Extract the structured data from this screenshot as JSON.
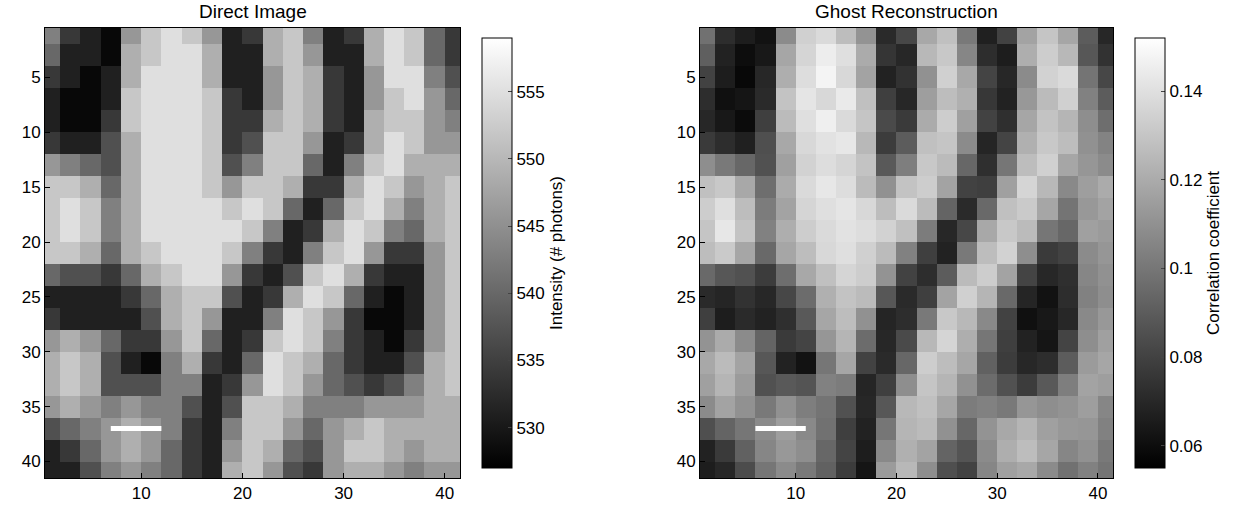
{
  "chart_data": [
    {
      "type": "heatmap",
      "title": "Direct Image",
      "x": [
        1,
        3,
        5,
        7,
        9,
        11,
        13,
        15,
        17,
        19,
        21,
        23,
        25,
        27,
        29,
        31,
        33,
        35,
        37,
        39,
        41
      ],
      "y": [
        1,
        3,
        5,
        7,
        9,
        11,
        13,
        15,
        17,
        19,
        21,
        23,
        25,
        27,
        29,
        31,
        33,
        35,
        37,
        39,
        41
      ],
      "xlim": [
        0.5,
        41.5
      ],
      "ylim": [
        41.5,
        0.5
      ],
      "xticks": [
        10,
        20,
        30,
        40
      ],
      "yticks": [
        5,
        10,
        15,
        20,
        25,
        30,
        35,
        40
      ],
      "cells": [
        [
          543,
          534,
          531,
          528,
          546,
          552,
          555,
          552,
          546,
          531,
          534,
          549,
          552,
          543,
          531,
          534,
          549,
          555,
          552,
          540,
          534
        ],
        [
          540,
          531,
          531,
          528,
          549,
          552,
          555,
          555,
          549,
          531,
          531,
          549,
          552,
          546,
          531,
          531,
          549,
          555,
          552,
          540,
          534
        ],
        [
          534,
          531,
          528,
          531,
          549,
          555,
          555,
          555,
          549,
          531,
          531,
          546,
          552,
          549,
          534,
          531,
          546,
          555,
          555,
          543,
          537
        ],
        [
          531,
          528,
          528,
          531,
          552,
          555,
          555,
          555,
          552,
          534,
          531,
          546,
          552,
          549,
          534,
          531,
          546,
          552,
          555,
          546,
          540
        ],
        [
          531,
          528,
          528,
          534,
          552,
          555,
          555,
          555,
          552,
          534,
          534,
          549,
          552,
          549,
          534,
          531,
          549,
          552,
          552,
          546,
          543
        ],
        [
          534,
          531,
          531,
          537,
          549,
          555,
          555,
          555,
          552,
          534,
          537,
          552,
          552,
          546,
          531,
          534,
          549,
          555,
          552,
          546,
          546
        ],
        [
          546,
          543,
          540,
          537,
          549,
          555,
          555,
          555,
          552,
          537,
          543,
          552,
          552,
          540,
          531,
          543,
          552,
          555,
          549,
          549,
          549
        ],
        [
          552,
          552,
          549,
          540,
          549,
          555,
          555,
          555,
          552,
          546,
          552,
          552,
          549,
          534,
          534,
          549,
          555,
          552,
          546,
          549,
          552
        ],
        [
          552,
          555,
          552,
          543,
          549,
          555,
          555,
          555,
          555,
          552,
          555,
          552,
          540,
          531,
          540,
          552,
          555,
          549,
          543,
          549,
          552
        ],
        [
          552,
          555,
          552,
          543,
          549,
          555,
          555,
          555,
          555,
          555,
          552,
          543,
          531,
          534,
          549,
          555,
          552,
          543,
          540,
          549,
          552
        ],
        [
          552,
          552,
          549,
          540,
          549,
          552,
          555,
          555,
          555,
          552,
          543,
          534,
          531,
          543,
          552,
          555,
          546,
          534,
          534,
          546,
          552
        ],
        [
          540,
          537,
          537,
          534,
          540,
          549,
          552,
          555,
          555,
          546,
          534,
          531,
          537,
          552,
          555,
          549,
          534,
          531,
          531,
          546,
          552
        ],
        [
          531,
          531,
          531,
          531,
          534,
          540,
          549,
          552,
          552,
          537,
          531,
          534,
          549,
          555,
          552,
          540,
          531,
          528,
          531,
          546,
          552
        ],
        [
          534,
          531,
          531,
          531,
          531,
          537,
          549,
          552,
          546,
          531,
          531,
          543,
          555,
          552,
          546,
          534,
          528,
          528,
          531,
          546,
          552
        ],
        [
          546,
          549,
          546,
          540,
          534,
          534,
          546,
          552,
          540,
          531,
          534,
          552,
          555,
          552,
          543,
          534,
          531,
          528,
          534,
          546,
          552
        ],
        [
          549,
          552,
          549,
          537,
          531,
          528,
          543,
          549,
          534,
          531,
          540,
          555,
          552,
          549,
          540,
          534,
          531,
          531,
          537,
          549,
          552
        ],
        [
          549,
          552,
          549,
          537,
          537,
          537,
          543,
          543,
          531,
          534,
          546,
          555,
          552,
          546,
          540,
          537,
          534,
          537,
          543,
          549,
          552
        ],
        [
          546,
          549,
          546,
          543,
          546,
          543,
          543,
          537,
          531,
          537,
          552,
          552,
          549,
          543,
          543,
          543,
          546,
          546,
          546,
          549,
          549
        ],
        [
          537,
          540,
          543,
          546,
          549,
          546,
          543,
          534,
          531,
          543,
          552,
          552,
          546,
          540,
          546,
          549,
          552,
          549,
          549,
          549,
          549
        ],
        [
          531,
          534,
          540,
          546,
          549,
          546,
          540,
          534,
          531,
          546,
          552,
          549,
          540,
          537,
          546,
          552,
          552,
          549,
          546,
          549,
          549
        ],
        [
          531,
          531,
          537,
          543,
          546,
          543,
          540,
          534,
          531,
          549,
          552,
          546,
          537,
          534,
          546,
          549,
          549,
          546,
          543,
          546,
          546
        ]
      ],
      "colorbar": {
        "title": "Intensity (# photons)",
        "range": [
          527,
          559
        ],
        "ticks": [
          530,
          535,
          540,
          545,
          550,
          555
        ]
      },
      "scale_bar": {
        "x": [
          7,
          12
        ],
        "y": 37
      }
    },
    {
      "type": "heatmap",
      "title": "Ghost Reconstruction",
      "x": [
        1,
        3,
        5,
        7,
        9,
        11,
        13,
        15,
        17,
        19,
        21,
        23,
        25,
        27,
        29,
        31,
        33,
        35,
        37,
        39,
        41
      ],
      "y": [
        1,
        3,
        5,
        7,
        9,
        11,
        13,
        15,
        17,
        19,
        21,
        23,
        25,
        27,
        29,
        31,
        33,
        35,
        37,
        39,
        41
      ],
      "xlim": [
        0.5,
        41.5
      ],
      "ylim": [
        41.5,
        0.5
      ],
      "xticks": [
        10,
        20,
        30,
        40
      ],
      "yticks": [
        5,
        10,
        15,
        20,
        25,
        30,
        35,
        40
      ],
      "cells": [
        [
          0.098,
          0.072,
          0.066,
          0.062,
          0.108,
          0.134,
          0.138,
          0.127,
          0.111,
          0.071,
          0.082,
          0.119,
          0.128,
          0.101,
          0.067,
          0.08,
          0.117,
          0.13,
          0.118,
          0.09,
          0.07
        ],
        [
          0.091,
          0.068,
          0.06,
          0.064,
          0.118,
          0.136,
          0.145,
          0.14,
          0.12,
          0.075,
          0.07,
          0.125,
          0.131,
          0.106,
          0.072,
          0.066,
          0.121,
          0.133,
          0.125,
          0.088,
          0.074
        ],
        [
          0.08,
          0.066,
          0.058,
          0.07,
          0.121,
          0.139,
          0.148,
          0.137,
          0.117,
          0.068,
          0.074,
          0.11,
          0.134,
          0.119,
          0.081,
          0.07,
          0.108,
          0.135,
          0.138,
          0.099,
          0.082
        ],
        [
          0.072,
          0.061,
          0.063,
          0.071,
          0.129,
          0.142,
          0.137,
          0.144,
          0.128,
          0.079,
          0.07,
          0.115,
          0.127,
          0.122,
          0.076,
          0.068,
          0.113,
          0.126,
          0.134,
          0.104,
          0.09
        ],
        [
          0.07,
          0.064,
          0.059,
          0.079,
          0.126,
          0.14,
          0.146,
          0.138,
          0.13,
          0.083,
          0.077,
          0.12,
          0.133,
          0.116,
          0.08,
          0.073,
          0.118,
          0.129,
          0.124,
          0.109,
          0.097
        ],
        [
          0.077,
          0.072,
          0.067,
          0.085,
          0.119,
          0.137,
          0.141,
          0.143,
          0.125,
          0.078,
          0.09,
          0.128,
          0.13,
          0.108,
          0.069,
          0.081,
          0.122,
          0.131,
          0.127,
          0.11,
          0.105
        ],
        [
          0.109,
          0.101,
          0.094,
          0.086,
          0.116,
          0.135,
          0.139,
          0.136,
          0.129,
          0.089,
          0.103,
          0.131,
          0.126,
          0.094,
          0.073,
          0.1,
          0.127,
          0.134,
          0.118,
          0.112,
          0.108
        ],
        [
          0.128,
          0.131,
          0.119,
          0.097,
          0.12,
          0.138,
          0.143,
          0.139,
          0.126,
          0.11,
          0.129,
          0.133,
          0.117,
          0.08,
          0.079,
          0.116,
          0.136,
          0.125,
          0.107,
          0.115,
          0.12
        ],
        [
          0.133,
          0.14,
          0.127,
          0.102,
          0.117,
          0.136,
          0.14,
          0.142,
          0.137,
          0.127,
          0.138,
          0.126,
          0.093,
          0.071,
          0.095,
          0.128,
          0.132,
          0.118,
          0.099,
          0.113,
          0.117
        ],
        [
          0.13,
          0.143,
          0.129,
          0.104,
          0.121,
          0.133,
          0.138,
          0.141,
          0.139,
          0.135,
          0.128,
          0.102,
          0.07,
          0.082,
          0.119,
          0.131,
          0.126,
          0.1,
          0.094,
          0.116,
          0.114
        ],
        [
          0.127,
          0.132,
          0.118,
          0.095,
          0.118,
          0.127,
          0.137,
          0.14,
          0.134,
          0.126,
          0.104,
          0.079,
          0.068,
          0.101,
          0.127,
          0.135,
          0.109,
          0.077,
          0.08,
          0.108,
          0.112
        ],
        [
          0.095,
          0.088,
          0.086,
          0.078,
          0.097,
          0.119,
          0.128,
          0.136,
          0.133,
          0.111,
          0.08,
          0.072,
          0.09,
          0.126,
          0.133,
          0.117,
          0.081,
          0.07,
          0.073,
          0.106,
          0.11
        ],
        [
          0.071,
          0.069,
          0.074,
          0.07,
          0.082,
          0.096,
          0.122,
          0.129,
          0.126,
          0.088,
          0.071,
          0.079,
          0.117,
          0.134,
          0.124,
          0.095,
          0.069,
          0.062,
          0.072,
          0.104,
          0.109
        ],
        [
          0.079,
          0.066,
          0.071,
          0.068,
          0.073,
          0.089,
          0.118,
          0.127,
          0.11,
          0.069,
          0.072,
          0.101,
          0.131,
          0.125,
          0.107,
          0.08,
          0.061,
          0.064,
          0.07,
          0.107,
          0.113
        ],
        [
          0.111,
          0.12,
          0.108,
          0.093,
          0.077,
          0.081,
          0.112,
          0.124,
          0.096,
          0.07,
          0.083,
          0.125,
          0.136,
          0.121,
          0.1,
          0.079,
          0.068,
          0.063,
          0.081,
          0.109,
          0.116
        ],
        [
          0.119,
          0.126,
          0.117,
          0.088,
          0.068,
          0.062,
          0.1,
          0.118,
          0.08,
          0.071,
          0.094,
          0.133,
          0.127,
          0.118,
          0.092,
          0.078,
          0.07,
          0.072,
          0.09,
          0.114,
          0.118
        ],
        [
          0.116,
          0.124,
          0.114,
          0.086,
          0.089,
          0.087,
          0.104,
          0.102,
          0.069,
          0.079,
          0.109,
          0.13,
          0.124,
          0.11,
          0.096,
          0.086,
          0.078,
          0.089,
          0.103,
          0.117,
          0.115
        ],
        [
          0.108,
          0.117,
          0.11,
          0.101,
          0.11,
          0.103,
          0.099,
          0.086,
          0.07,
          0.088,
          0.125,
          0.128,
          0.118,
          0.102,
          0.104,
          0.101,
          0.112,
          0.109,
          0.111,
          0.115,
          0.106
        ],
        [
          0.085,
          0.093,
          0.1,
          0.108,
          0.115,
          0.107,
          0.098,
          0.079,
          0.068,
          0.1,
          0.124,
          0.126,
          0.11,
          0.094,
          0.111,
          0.119,
          0.124,
          0.116,
          0.113,
          0.112,
          0.104
        ],
        [
          0.068,
          0.077,
          0.092,
          0.106,
          0.113,
          0.109,
          0.094,
          0.081,
          0.066,
          0.107,
          0.122,
          0.117,
          0.093,
          0.087,
          0.108,
          0.121,
          0.127,
          0.118,
          0.106,
          0.11,
          0.101
        ],
        [
          0.066,
          0.07,
          0.084,
          0.1,
          0.108,
          0.101,
          0.092,
          0.078,
          0.063,
          0.114,
          0.125,
          0.109,
          0.085,
          0.08,
          0.106,
          0.116,
          0.119,
          0.108,
          0.098,
          0.104,
          0.099
        ]
      ],
      "colorbar": {
        "title": "Correlation coefficient",
        "range": [
          0.055,
          0.152
        ],
        "ticks": [
          0.06,
          0.08,
          0.1,
          0.12,
          0.14
        ]
      },
      "scale_bar": {
        "x": [
          6,
          11
        ],
        "y": 37
      }
    }
  ]
}
